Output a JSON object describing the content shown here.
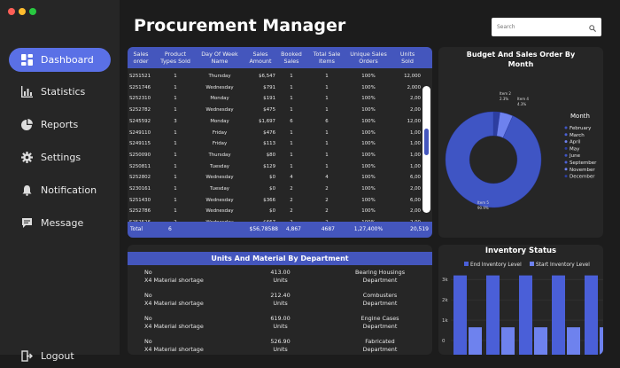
{
  "app": {
    "title": "Procurement Manager",
    "window_dots": [
      "#ff5f57",
      "#febc2e",
      "#28c840"
    ]
  },
  "search": {
    "placeholder": "Search"
  },
  "nav": {
    "items": [
      {
        "label": "Dashboard",
        "icon": "dashboard-icon",
        "active": true
      },
      {
        "label": "Statistics",
        "icon": "bar-chart-icon"
      },
      {
        "label": "Reports",
        "icon": "pie-chart-icon"
      },
      {
        "label": "Settings",
        "icon": "gear-icon"
      },
      {
        "label": "Notification",
        "icon": "bell-icon"
      },
      {
        "label": "Message",
        "icon": "message-icon"
      }
    ],
    "logout": "Logout"
  },
  "sales_table": {
    "columns": [
      "Sales order",
      "Product Types Sold",
      "Day Of Week Name",
      "Sales Amount",
      "Booked Sales",
      "Total Sale Items",
      "Unique Sales Orders",
      "Units Sold"
    ],
    "rows": [
      [
        "S251521",
        "1",
        "Thursday",
        "$6,547",
        "1",
        "1",
        "100%",
        "12,000"
      ],
      [
        "S251746",
        "1",
        "Wednesday",
        "$791",
        "1",
        "1",
        "100%",
        "2,000"
      ],
      [
        "S252310",
        "1",
        "Monday",
        "$191",
        "1",
        "1",
        "100%",
        "2,00"
      ],
      [
        "S252782",
        "1",
        "Wednesday",
        "$475",
        "1",
        "1",
        "100%",
        "2,00"
      ],
      [
        "S245592",
        "3",
        "Monday",
        "$1,697",
        "6",
        "6",
        "100%",
        "12,00"
      ],
      [
        "S249110",
        "1",
        "Friday",
        "$476",
        "1",
        "1",
        "100%",
        "1,00"
      ],
      [
        "S249115",
        "1",
        "Friday",
        "$113",
        "1",
        "1",
        "100%",
        "1,00"
      ],
      [
        "S250090",
        "1",
        "Thursday",
        "$80",
        "1",
        "1",
        "100%",
        "1,00"
      ],
      [
        "S250811",
        "1",
        "Tuesday",
        "$129",
        "1",
        "1",
        "100%",
        "1,00"
      ],
      [
        "S252802",
        "1",
        "Wednesday",
        "$0",
        "4",
        "4",
        "100%",
        "6,00"
      ],
      [
        "S230161",
        "1",
        "Tuesday",
        "$0",
        "2",
        "2",
        "100%",
        "2,00"
      ],
      [
        "S251430",
        "1",
        "Wednesday",
        "$366",
        "2",
        "2",
        "100%",
        "6,00"
      ],
      [
        "S252786",
        "1",
        "Wednesday",
        "$0",
        "2",
        "2",
        "100%",
        "2,00"
      ],
      [
        "S252526",
        "2",
        "Wednesday",
        "$667",
        "2",
        "2",
        "100%",
        "2,00"
      ],
      [
        "S251430",
        "1",
        "Wednesday",
        "$171",
        "1",
        "1",
        "100%",
        "1,00"
      ]
    ],
    "total": [
      "Total",
      "6",
      "",
      "$56,78588",
      "4,867",
      "4687",
      "1,27,400%",
      "20,519"
    ]
  },
  "budget": {
    "title": "Budget And Sales Order By Month",
    "legend_title": "Month",
    "months": [
      "February",
      "March",
      "April",
      "May",
      "June",
      "September",
      "November",
      "December"
    ],
    "slice_labels": [
      {
        "name": "Item 2",
        "pct": "2.3%"
      },
      {
        "name": "Item 4",
        "pct": "4.3%"
      },
      {
        "name": "Item 5",
        "pct": "90.9%"
      }
    ],
    "colors": [
      "#3f55c4",
      "#4a61d6",
      "#6e82ee",
      "#2d3ea0"
    ]
  },
  "units_dept": {
    "title": "Units And Material By Department",
    "rows": [
      {
        "flag": "No",
        "reason": "X4 Material shortage",
        "amount": "413.00",
        "unit": "Units",
        "dept1": "Bearing Housings",
        "dept2": "Department"
      },
      {
        "flag": "No",
        "reason": "X4 Material shortage",
        "amount": "212.40",
        "unit": "Units",
        "dept1": "Combusters",
        "dept2": "Department"
      },
      {
        "flag": "No",
        "reason": "X4 Material shortage",
        "amount": "619.00",
        "unit": "Units",
        "dept1": "Engine Cases",
        "dept2": "Department"
      },
      {
        "flag": "No",
        "reason": "X4 Material shortage",
        "amount": "526.90",
        "unit": "Units",
        "dept1": "Fabricated",
        "dept2": "Department"
      }
    ]
  },
  "chart_data": {
    "type": "bar",
    "title": "Inventory Status",
    "legend_position": "top",
    "series": [
      {
        "name": "End Inventory Level",
        "color": "#4a5fd8",
        "values": [
          3200,
          3200,
          3200,
          3200,
          3200
        ]
      },
      {
        "name": "Start Inventory Level",
        "color": "#6e82ee",
        "values": [
          650,
          650,
          650,
          650,
          650
        ]
      }
    ],
    "y_ticks": [
      "3k",
      "2k",
      "1k",
      "0"
    ],
    "ylim": [
      0,
      3400
    ],
    "grid": true
  }
}
